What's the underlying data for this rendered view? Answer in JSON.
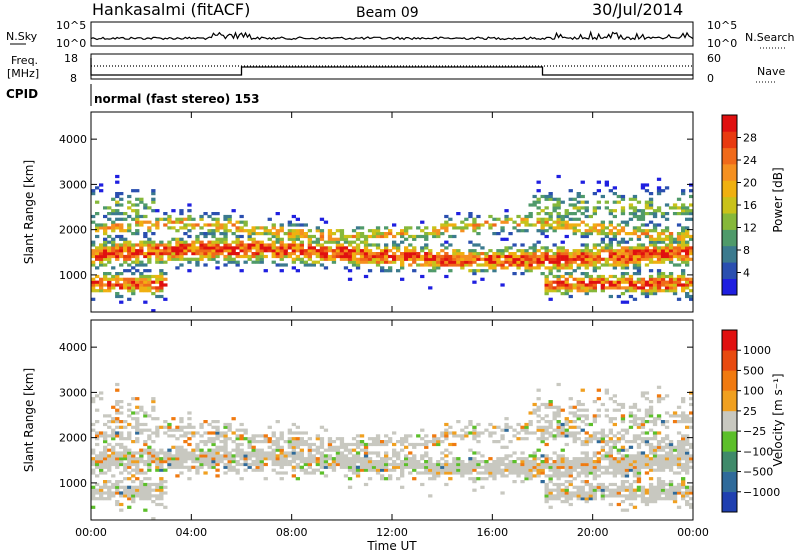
{
  "header": {
    "radar": "Hankasalmi (fitACF)",
    "beam": "Beam 09",
    "date": "30/Jul/2014"
  },
  "top_panels": {
    "nsky_label": "N.Sky",
    "nsky_ticks": [
      "10^5",
      "10^0"
    ],
    "nsearch_label": "N.Search",
    "nsearch_ticks": [
      "10^5",
      "10^0"
    ],
    "freq_label_1": "Freq.",
    "freq_label_2": "[MHz]",
    "freq_ticks": [
      "18",
      "8"
    ],
    "nave_label": "Nave",
    "nave_ticks": [
      "60",
      "0"
    ],
    "cpid_label": "CPID",
    "cpid_text": "normal (fast stereo) 153"
  },
  "chart_data": [
    {
      "type": "heatmap",
      "name": "power",
      "ylabel": "Slant Range [km]",
      "ylim": [
        180,
        4600
      ],
      "yticks": [
        "1000",
        "2000",
        "3000",
        "4000"
      ],
      "xlim": [
        "00:00",
        "24:00"
      ],
      "colorbar": {
        "label": "Power [dB]",
        "ticks": [
          "4",
          "8",
          "12",
          "16",
          "20",
          "24",
          "28"
        ],
        "colors": [
          "#1f1fe0",
          "#2a4fb0",
          "#3b7a8e",
          "#4f9a6a",
          "#86b83a",
          "#c9c21a",
          "#f0b010",
          "#f59020",
          "#f06a1a",
          "#e83a10",
          "#e01010"
        ]
      },
      "grid": false
    },
    {
      "type": "heatmap",
      "name": "velocity",
      "ylabel": "Slant Range [km]",
      "ylim": [
        180,
        4600
      ],
      "yticks": [
        "1000",
        "2000",
        "3000",
        "4000"
      ],
      "xlim": [
        "00:00",
        "24:00"
      ],
      "colorbar": {
        "label": "Velocity [m s⁻¹]",
        "ticks": [
          "1000",
          "500",
          "100",
          "25",
          "−25",
          "−100",
          "−500",
          "−1000"
        ],
        "colors": [
          "#1f3fb0",
          "#2f6a9a",
          "#3f8a6a",
          "#5cbf2a",
          "#c8c8c0",
          "#f0a020",
          "#f07a10",
          "#e84a10",
          "#e01010"
        ]
      },
      "grid": false
    }
  ],
  "x_axis": {
    "ticks": [
      "00:00",
      "04:00",
      "08:00",
      "12:00",
      "16:00",
      "20:00",
      "00:00"
    ],
    "label": "Time UT"
  }
}
